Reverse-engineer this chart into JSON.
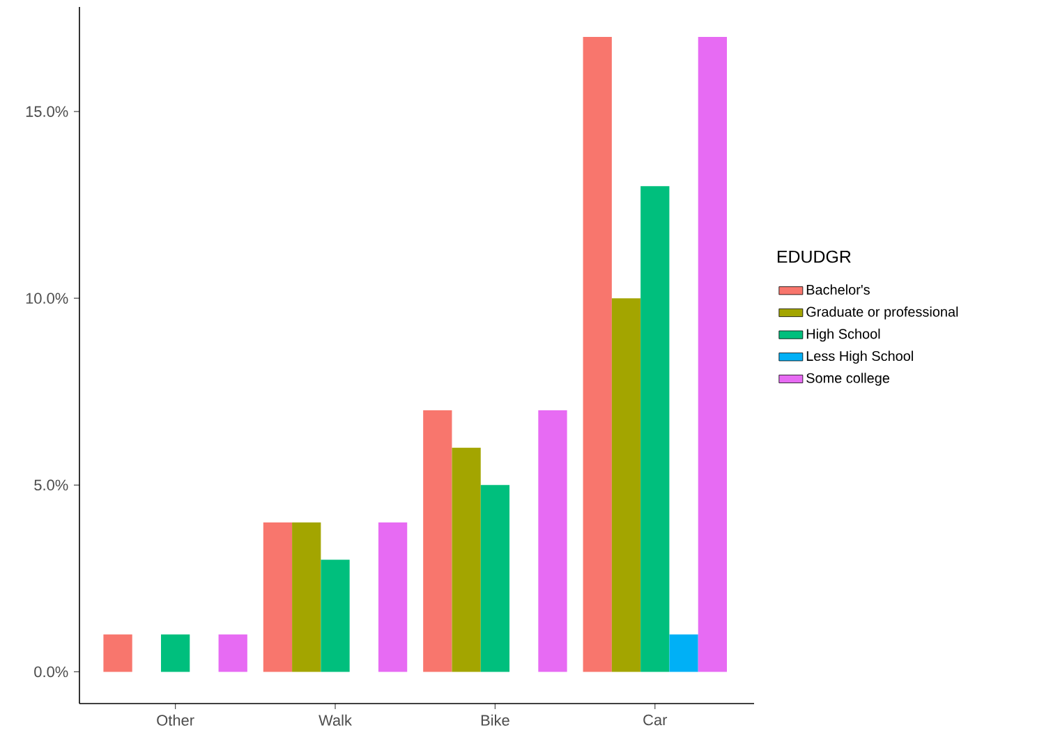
{
  "chart_data": {
    "type": "bar",
    "legend_title": "EDUDGR",
    "categories": [
      "Other",
      "Walk",
      "Bike",
      "Car"
    ],
    "series": [
      {
        "name": "Bachelor's",
        "color": "#f8766d",
        "values": [
          1,
          4,
          7,
          17
        ]
      },
      {
        "name": "Graduate or professional",
        "color": "#a3a500",
        "values": [
          null,
          4,
          6,
          10
        ]
      },
      {
        "name": "High School",
        "color": "#00bf7d",
        "values": [
          1,
          3,
          5,
          13
        ]
      },
      {
        "name": "Less High School",
        "color": "#00b0f6",
        "values": [
          null,
          null,
          null,
          1
        ]
      },
      {
        "name": "Some college",
        "color": "#e76bf3",
        "values": [
          1,
          4,
          7,
          17
        ]
      }
    ],
    "ylim": [
      -0.85,
      17.8
    ],
    "yticks": [
      {
        "value": 0,
        "label": "0.0%"
      },
      {
        "value": 5,
        "label": "5.0%"
      },
      {
        "value": 10,
        "label": "10.0%"
      },
      {
        "value": 15,
        "label": "15.0%"
      }
    ],
    "grid": false,
    "legend": "right"
  }
}
